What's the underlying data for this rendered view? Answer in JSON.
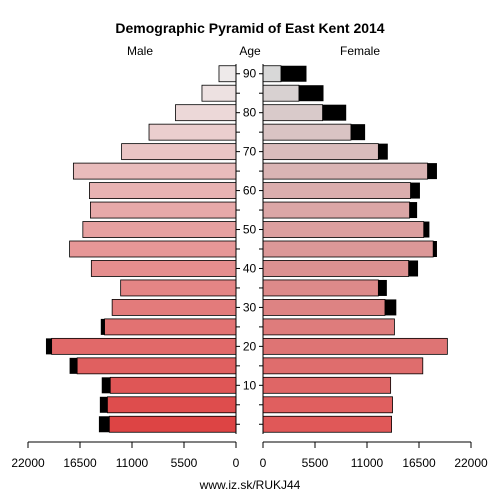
{
  "chart_data": {
    "type": "bar",
    "title": "Demographic Pyramid of East Kent 2014",
    "left_label": "Male",
    "center_label": "Age",
    "right_label": "Female",
    "footer": "www.iz.sk/RUKJ44",
    "age_groups": [
      "0-4",
      "5-9",
      "10-14",
      "15-19",
      "20-24",
      "25-29",
      "30-34",
      "35-39",
      "40-44",
      "45-49",
      "50-54",
      "55-59",
      "60-64",
      "65-69",
      "70-74",
      "75-79",
      "80-84",
      "85-89",
      "90+"
    ],
    "age_ticks": [
      "10",
      "20",
      "30",
      "40",
      "50",
      "60",
      "70",
      "80",
      "90"
    ],
    "x_ticks_left": [
      "22000",
      "16500",
      "11000",
      "5500",
      "0"
    ],
    "x_ticks_right": [
      "0",
      "5500",
      "11000",
      "16500",
      "22000"
    ],
    "xlim": [
      0,
      22000
    ],
    "series": [
      {
        "name": "Male",
        "total": [
          14500,
          14400,
          14200,
          17600,
          20100,
          14300,
          13100,
          12200,
          15300,
          17600,
          16200,
          15400,
          15500,
          17200,
          12100,
          9200,
          6400,
          3600,
          1800
        ],
        "highlight": [
          13400,
          13600,
          13300,
          16800,
          19500,
          13900,
          13100,
          12200,
          15300,
          17600,
          16200,
          15400,
          15500,
          17200,
          12100,
          9200,
          6400,
          3600,
          1800
        ]
      },
      {
        "name": "Female",
        "total": [
          13600,
          13700,
          13500,
          16900,
          19500,
          13900,
          14100,
          13100,
          16400,
          18400,
          17600,
          16300,
          16600,
          18400,
          13200,
          10800,
          8800,
          6400,
          4600
        ],
        "highlight": [
          13600,
          13700,
          13500,
          16900,
          19500,
          13900,
          12900,
          12200,
          15400,
          18000,
          17000,
          15500,
          15600,
          17400,
          12200,
          9300,
          6300,
          3800,
          1900
        ]
      }
    ]
  }
}
